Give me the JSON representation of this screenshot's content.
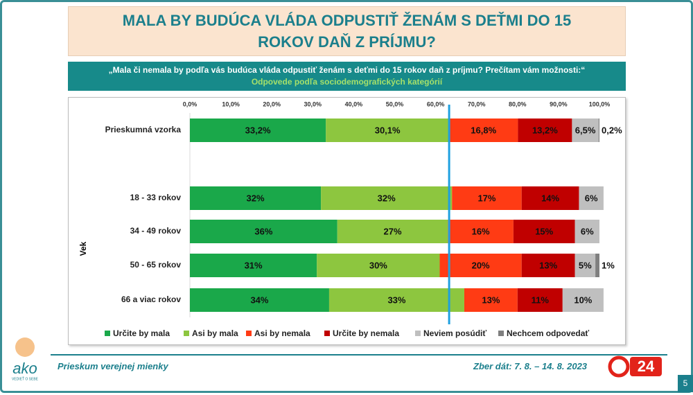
{
  "header": {
    "title": "MALA BY BUDÚCA VLÁDA ODPUSTIŤ ŽENÁM S DEŤMI DO 15 ROKOV DAŇ Z PRÍJMU?",
    "question": "„Mala či nemala by podľa vás budúca vláda odpustiť ženám s deťmi do 15 rokov daň z príjmu? Prečítam vám možnosti:“",
    "subtitle": "Odpovede podľa sociodemografických kategórií"
  },
  "chart_data": {
    "type": "bar",
    "orientation": "horizontal",
    "stacked": true,
    "categories": [
      "Prieskumná vzorka",
      "18 - 33 rokov",
      "34 - 49 rokov",
      "50 - 65 rokov",
      "66 a viac rokov"
    ],
    "group_label": "Vek",
    "xlim": [
      0,
      100
    ],
    "xticks": [
      {
        "value": 0,
        "label": "0,0%"
      },
      {
        "value": 10,
        "label": "10,0%"
      },
      {
        "value": 20,
        "label": "20,0%"
      },
      {
        "value": 30,
        "label": "30,0%"
      },
      {
        "value": 40,
        "label": "40,0%"
      },
      {
        "value": 50,
        "label": "50,0%"
      },
      {
        "value": 60,
        "label": "60,0%"
      },
      {
        "value": 70,
        "label": "70,0%"
      },
      {
        "value": 80,
        "label": "80,0%"
      },
      {
        "value": 90,
        "label": "90,0%"
      },
      {
        "value": 100,
        "label": "100,0%"
      }
    ],
    "legend": "bottom",
    "series": [
      {
        "name": "Určite by mala",
        "color": "#1aa84a",
        "values": [
          33.2,
          32,
          36,
          31,
          34
        ],
        "value_labels": [
          "33,2%",
          "32%",
          "36%",
          "31%",
          "34%"
        ]
      },
      {
        "name": "Asi by mala",
        "color": "#8dc63f",
        "values": [
          30.1,
          32,
          27,
          30,
          33
        ],
        "value_labels": [
          "30,1%",
          "32%",
          "27%",
          "30%",
          "33%"
        ]
      },
      {
        "name": "Asi by nemala",
        "color": "#ff3b14",
        "values": [
          16.8,
          17,
          16,
          20,
          13
        ],
        "value_labels": [
          "16,8%",
          "17%",
          "16%",
          "20%",
          "13%"
        ]
      },
      {
        "name": "Určite by nemala",
        "color": "#c00000",
        "values": [
          13.2,
          14,
          15,
          13,
          11
        ],
        "value_labels": [
          "13,2%",
          "14%",
          "15%",
          "13%",
          "11%"
        ]
      },
      {
        "name": "Neviem posúdiť",
        "color": "#bfbfbf",
        "values": [
          6.5,
          6,
          6,
          5,
          10
        ],
        "value_labels": [
          "6,5%",
          "6%",
          "6%",
          "5%",
          "10%"
        ]
      },
      {
        "name": "Nechcem odpovedať",
        "color": "#7f7f7f",
        "values": [
          0.2,
          null,
          null,
          1,
          null
        ],
        "value_labels": [
          "0,2%",
          null,
          null,
          "1%",
          null
        ]
      }
    ]
  },
  "footer": {
    "survey": "Prieskum verejnej mienky",
    "dates": "Zber dát: 7. 8. – 14. 8. 2023",
    "page": "5",
    "logo": "ako",
    "logo_tagline": "VEDIEŤ O SEBE"
  }
}
